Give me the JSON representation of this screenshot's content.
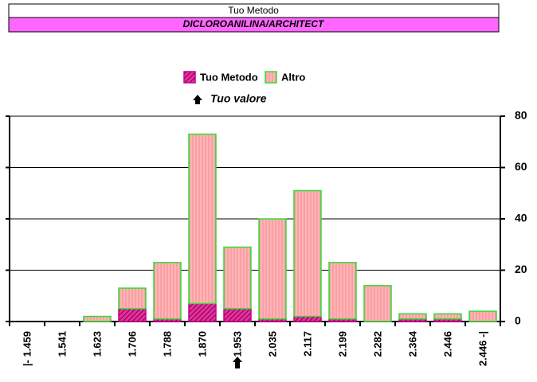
{
  "chart_data": {
    "type": "bar",
    "stacked": true,
    "title": "Tuo Metodo",
    "subtitle": "DICLOROANILINA/ARCHITECT",
    "annotation": "Tuo valore",
    "categories": [
      "|- 1.459",
      "1.541",
      "1.623",
      "1.706",
      "1.788",
      "1.870",
      "1.953",
      "2.035",
      "2.117",
      "2.199",
      "2.282",
      "2.364",
      "2.446",
      "2.446 -|"
    ],
    "series": [
      {
        "name": "Tuo Metodo",
        "color": "#e8309c",
        "values": [
          0,
          0,
          0,
          5,
          1,
          7,
          5,
          1,
          2,
          1,
          0,
          1,
          1,
          0
        ]
      },
      {
        "name": "Altro",
        "color": "#ffb4b4",
        "values": [
          0,
          0,
          2,
          8,
          22,
          66,
          24,
          39,
          49,
          22,
          14,
          2,
          2,
          4
        ]
      }
    ],
    "ylim": [
      0,
      80
    ],
    "yticks": [
      0,
      20,
      40,
      60,
      80
    ],
    "grid": true
  }
}
